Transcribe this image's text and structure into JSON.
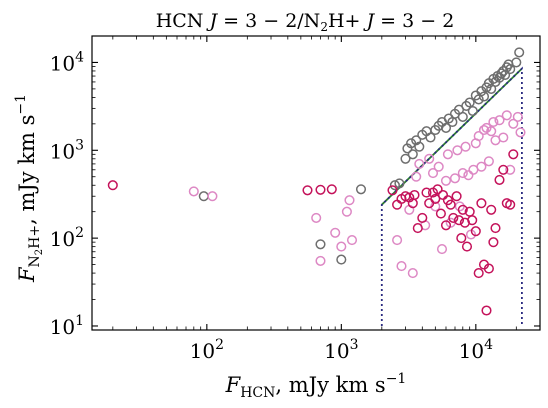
{
  "chart_data": {
    "type": "scatter",
    "title": "HCN J = 3 − 2/N₂H+ J = 3 − 2",
    "title_parts": {
      "a": "HCN ",
      "b": "J",
      "c": " = 3 − 2/N",
      "d": "2",
      "e": "H+ ",
      "f": "J",
      "g": " = 3 − 2"
    },
    "xlabel_parts": {
      "F": "F",
      "sub": "HCN",
      "rest": ", mJy km s",
      "sup": "−1"
    },
    "ylabel_parts": {
      "F": "F",
      "sub1": "N",
      "sub2": "2",
      "sub3": "H+",
      "rest": ", mJy km s",
      "sup": "−1"
    },
    "xscale": "log",
    "yscale": "log",
    "xlim": [
      14,
      30000
    ],
    "ylim": [
      9,
      20000
    ],
    "xticks": [
      {
        "value": 100,
        "base": "10",
        "exp": "2"
      },
      {
        "value": 1000,
        "base": "10",
        "exp": "3"
      },
      {
        "value": 10000,
        "base": "10",
        "exp": "4"
      }
    ],
    "yticks": [
      {
        "value": 10,
        "base": "10",
        "exp": "1"
      },
      {
        "value": 100,
        "base": "10",
        "exp": "2"
      },
      {
        "value": 1000,
        "base": "10",
        "exp": "3"
      },
      {
        "value": 10000,
        "base": "10",
        "exp": "4"
      }
    ],
    "grid": false,
    "legend": "none",
    "series": [
      {
        "color": "#6e6e6e",
        "points": [
          [
            95,
            300
          ],
          [
            700,
            85
          ],
          [
            1000,
            57
          ],
          [
            1400,
            360
          ],
          [
            2500,
            400
          ],
          [
            2700,
            420
          ],
          [
            3000,
            800
          ],
          [
            3100,
            1050
          ],
          [
            3300,
            1200
          ],
          [
            3400,
            900
          ],
          [
            3600,
            1300
          ],
          [
            3800,
            1100
          ],
          [
            4000,
            1500
          ],
          [
            4300,
            1650
          ],
          [
            4600,
            1400
          ],
          [
            5000,
            1700
          ],
          [
            5300,
            1900
          ],
          [
            5600,
            2100
          ],
          [
            6000,
            1800
          ],
          [
            6300,
            2300
          ],
          [
            6700,
            2100
          ],
          [
            7000,
            2600
          ],
          [
            7500,
            2900
          ],
          [
            8000,
            2400
          ],
          [
            8500,
            3200
          ],
          [
            9000,
            3500
          ],
          [
            9500,
            2800
          ],
          [
            10000,
            4200
          ],
          [
            10500,
            3800
          ],
          [
            11000,
            4700
          ],
          [
            11500,
            4100
          ],
          [
            12000,
            5200
          ],
          [
            12500,
            5800
          ],
          [
            13000,
            5000
          ],
          [
            13500,
            6500
          ],
          [
            14000,
            6000
          ],
          [
            14500,
            7000
          ],
          [
            15000,
            6700
          ],
          [
            15500,
            7500
          ],
          [
            16000,
            8000
          ],
          [
            16500,
            7200
          ],
          [
            17000,
            8800
          ],
          [
            17500,
            9500
          ],
          [
            18000,
            8400
          ],
          [
            20000,
            10000
          ],
          [
            21000,
            13000
          ]
        ]
      },
      {
        "color": "#dd88c4",
        "points": [
          [
            80,
            340
          ],
          [
            110,
            300
          ],
          [
            650,
            170
          ],
          [
            700,
            55
          ],
          [
            900,
            115
          ],
          [
            1000,
            80
          ],
          [
            1100,
            200
          ],
          [
            1150,
            270
          ],
          [
            1200,
            95
          ],
          [
            2600,
            95
          ],
          [
            2800,
            48
          ],
          [
            3200,
            210
          ],
          [
            3400,
            40
          ],
          [
            3600,
            500
          ],
          [
            3800,
            700
          ],
          [
            4200,
            140
          ],
          [
            4500,
            800
          ],
          [
            4800,
            550
          ],
          [
            5000,
            230
          ],
          [
            5300,
            650
          ],
          [
            5600,
            75
          ],
          [
            6000,
            450
          ],
          [
            6200,
            900
          ],
          [
            6500,
            150
          ],
          [
            7000,
            480
          ],
          [
            7300,
            1000
          ],
          [
            7600,
            230
          ],
          [
            8000,
            550
          ],
          [
            8400,
            1100
          ],
          [
            8800,
            520
          ],
          [
            9200,
            110
          ],
          [
            9600,
            600
          ],
          [
            10000,
            1200
          ],
          [
            10500,
            1450
          ],
          [
            11000,
            650
          ],
          [
            11500,
            1700
          ],
          [
            12000,
            1800
          ],
          [
            12500,
            750
          ],
          [
            13000,
            1650
          ],
          [
            13500,
            2100
          ],
          [
            14000,
            1300
          ],
          [
            15000,
            2200
          ],
          [
            16000,
            1400
          ],
          [
            17000,
            2500
          ],
          [
            18000,
            600
          ],
          [
            19000,
            2000
          ],
          [
            20500,
            2400
          ],
          [
            21500,
            1600
          ]
        ]
      },
      {
        "color": "#c4125a",
        "points": [
          [
            20,
            400
          ],
          [
            560,
            350
          ],
          [
            700,
            355
          ],
          [
            850,
            360
          ],
          [
            2400,
            350
          ],
          [
            2600,
            240
          ],
          [
            2800,
            280
          ],
          [
            3000,
            300
          ],
          [
            3200,
            290
          ],
          [
            3400,
            250
          ],
          [
            3500,
            310
          ],
          [
            3700,
            130
          ],
          [
            4000,
            170
          ],
          [
            4300,
            330
          ],
          [
            4500,
            250
          ],
          [
            4800,
            330
          ],
          [
            5000,
            280
          ],
          [
            5200,
            360
          ],
          [
            5500,
            190
          ],
          [
            5700,
            310
          ],
          [
            6000,
            140
          ],
          [
            6200,
            270
          ],
          [
            6500,
            240
          ],
          [
            6800,
            170
          ],
          [
            7200,
            300
          ],
          [
            7500,
            160
          ],
          [
            7800,
            100
          ],
          [
            8000,
            210
          ],
          [
            8300,
            150
          ],
          [
            8600,
            80
          ],
          [
            9000,
            200
          ],
          [
            9400,
            160
          ],
          [
            10000,
            120
          ],
          [
            10500,
            40
          ],
          [
            11000,
            250
          ],
          [
            11500,
            50
          ],
          [
            12000,
            15
          ],
          [
            12500,
            45
          ],
          [
            13000,
            210
          ],
          [
            13500,
            90
          ],
          [
            14000,
            130
          ],
          [
            15000,
            460
          ],
          [
            16000,
            600
          ],
          [
            17000,
            250
          ],
          [
            18000,
            240
          ],
          [
            19000,
            900
          ]
        ]
      }
    ],
    "lines": [
      {
        "color": "#2e7d32",
        "style": "solid",
        "points": [
          [
            2000,
            240
          ],
          [
            22000,
            8500
          ]
        ]
      },
      {
        "color": "#2a2a80",
        "style": "dotted",
        "points": [
          [
            2000,
            10
          ],
          [
            2000,
            240
          ],
          [
            22000,
            8500
          ],
          [
            22000,
            10
          ]
        ]
      }
    ]
  }
}
